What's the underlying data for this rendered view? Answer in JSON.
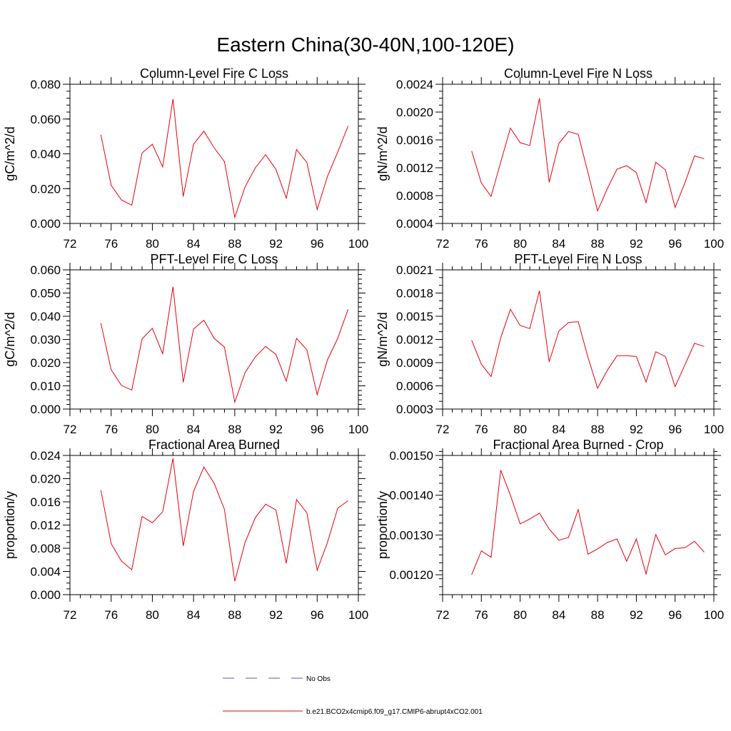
{
  "figure": {
    "title": "Eastern China(30-40N,100-120E)"
  },
  "legend": {
    "items": [
      {
        "label": "No Obs",
        "color": "#5555cc",
        "dashed": true
      },
      {
        "label": "b.e21.BCO2x4cmip6.f09_g17.CMIP6-abrupt4xCO2.001",
        "color": "#e8000b",
        "dashed": false
      }
    ]
  },
  "colors": {
    "series": "#e8000b",
    "axis": "#000000"
  },
  "chart_data": [
    {
      "type": "line",
      "title": "Column-Level Fire C Loss",
      "ylabel": "gC/m^2/d",
      "xlim": [
        72,
        100
      ],
      "xticks": [
        72,
        76,
        80,
        84,
        88,
        92,
        96,
        100
      ],
      "xtick_labels": [
        "72",
        "76",
        "80",
        "84",
        "88",
        "92",
        "96",
        "100"
      ],
      "ylim": [
        0.0,
        0.08
      ],
      "yticks": [
        0.0,
        0.02,
        0.04,
        0.06,
        0.08
      ],
      "ytick_labels": [
        "0.000",
        "0.020",
        "0.040",
        "0.060",
        "0.080"
      ],
      "yminor": 0.004,
      "x": [
        75,
        76,
        77,
        78,
        79,
        80,
        81,
        82,
        83,
        84,
        85,
        86,
        87,
        88,
        89,
        90,
        91,
        92,
        93,
        94,
        95,
        96,
        97,
        98,
        99
      ],
      "series": [
        {
          "name": "b.e21.BCO2x4cmip6.f09_g17.CMIP6-abrupt4xCO2.001",
          "values": [
            0.051,
            0.022,
            0.0135,
            0.0105,
            0.0405,
            0.0455,
            0.0325,
            0.0715,
            0.0155,
            0.0455,
            0.053,
            0.0435,
            0.0355,
            0.0035,
            0.021,
            0.032,
            0.0395,
            0.031,
            0.0145,
            0.0425,
            0.035,
            0.008,
            0.027,
            0.041,
            0.056
          ]
        }
      ]
    },
    {
      "type": "line",
      "title": "Column-Level Fire N Loss",
      "ylabel": "gN/m^2/d",
      "xlim": [
        72,
        100
      ],
      "xticks": [
        72,
        76,
        80,
        84,
        88,
        92,
        96,
        100
      ],
      "xtick_labels": [
        "72",
        "76",
        "80",
        "84",
        "88",
        "92",
        "96",
        "100"
      ],
      "ylim": [
        0.0004,
        0.0024
      ],
      "yticks": [
        0.0004,
        0.0008,
        0.0012,
        0.0016,
        0.002,
        0.0024
      ],
      "ytick_labels": [
        "0.0004",
        "0.0008",
        "0.0012",
        "0.0016",
        "0.0020",
        "0.0024"
      ],
      "yminor": 0.0001,
      "x": [
        75,
        76,
        77,
        78,
        79,
        80,
        81,
        82,
        83,
        84,
        85,
        86,
        87,
        88,
        89,
        90,
        91,
        92,
        93,
        94,
        95,
        96,
        97,
        98,
        99
      ],
      "series": [
        {
          "name": "b.e21.BCO2x4cmip6.f09_g17.CMIP6-abrupt4xCO2.001",
          "values": [
            0.00144,
            0.00098,
            0.00079,
            0.00128,
            0.00177,
            0.00156,
            0.00152,
            0.0022,
            0.00099,
            0.00155,
            0.00172,
            0.00168,
            0.00113,
            0.00058,
            0.0009,
            0.00118,
            0.00123,
            0.00113,
            0.0007,
            0.00128,
            0.00117,
            0.00063,
            0.00098,
            0.00137,
            0.00133
          ]
        }
      ]
    },
    {
      "type": "line",
      "title": "PFT-Level Fire C Loss",
      "ylabel": "gC/m^2/d",
      "xlim": [
        72,
        100
      ],
      "xticks": [
        72,
        76,
        80,
        84,
        88,
        92,
        96,
        100
      ],
      "xtick_labels": [
        "72",
        "76",
        "80",
        "84",
        "88",
        "92",
        "96",
        "100"
      ],
      "ylim": [
        0.0,
        0.06
      ],
      "yticks": [
        0.0,
        0.01,
        0.02,
        0.03,
        0.04,
        0.05,
        0.06
      ],
      "ytick_labels": [
        "0.000",
        "0.010",
        "0.020",
        "0.030",
        "0.040",
        "0.050",
        "0.060"
      ],
      "yminor": 0.002,
      "x": [
        75,
        76,
        77,
        78,
        79,
        80,
        81,
        82,
        83,
        84,
        85,
        86,
        87,
        88,
        89,
        90,
        91,
        92,
        93,
        94,
        95,
        96,
        97,
        98,
        99
      ],
      "series": [
        {
          "name": "b.e21.BCO2x4cmip6.f09_g17.CMIP6-abrupt4xCO2.001",
          "values": [
            0.037,
            0.017,
            0.0102,
            0.0082,
            0.0302,
            0.0348,
            0.0238,
            0.0527,
            0.0115,
            0.0345,
            0.0383,
            0.0305,
            0.0267,
            0.003,
            0.0157,
            0.0225,
            0.027,
            0.0235,
            0.012,
            0.0305,
            0.0255,
            0.0062,
            0.0212,
            0.0305,
            0.043
          ]
        }
      ]
    },
    {
      "type": "line",
      "title": "PFT-Level Fire N Loss",
      "ylabel": "gN/m^2/d",
      "xlim": [
        72,
        100
      ],
      "xticks": [
        72,
        76,
        80,
        84,
        88,
        92,
        96,
        100
      ],
      "xtick_labels": [
        "72",
        "76",
        "80",
        "84",
        "88",
        "92",
        "96",
        "100"
      ],
      "ylim": [
        0.0003,
        0.0021
      ],
      "yticks": [
        0.0003,
        0.0006,
        0.0009,
        0.0012,
        0.0015,
        0.0018,
        0.0021
      ],
      "ytick_labels": [
        "0.0003",
        "0.0006",
        "0.0009",
        "0.0012",
        "0.0015",
        "0.0018",
        "0.0021"
      ],
      "yminor": 0.0001,
      "x": [
        75,
        76,
        77,
        78,
        79,
        80,
        81,
        82,
        83,
        84,
        85,
        86,
        87,
        88,
        89,
        90,
        91,
        92,
        93,
        94,
        95,
        96,
        97,
        98,
        99
      ],
      "series": [
        {
          "name": "b.e21.BCO2x4cmip6.f09_g17.CMIP6-abrupt4xCO2.001",
          "values": [
            0.00119,
            0.00088,
            0.00072,
            0.00122,
            0.00159,
            0.00138,
            0.00134,
            0.00183,
            0.00091,
            0.00131,
            0.00142,
            0.00143,
            0.00097,
            0.00057,
            0.0008,
            0.00099,
            0.00099,
            0.00098,
            0.00065,
            0.00104,
            0.00098,
            0.00059,
            0.00087,
            0.00115,
            0.00111
          ]
        }
      ]
    },
    {
      "type": "line",
      "title": "Fractional Area Burned",
      "ylabel": "proportion/y",
      "xlim": [
        72,
        100
      ],
      "xticks": [
        72,
        76,
        80,
        84,
        88,
        92,
        96,
        100
      ],
      "xtick_labels": [
        "72",
        "76",
        "80",
        "84",
        "88",
        "92",
        "96",
        "100"
      ],
      "ylim": [
        0.0,
        0.024
      ],
      "yticks": [
        0.0,
        0.004,
        0.008,
        0.012,
        0.016,
        0.02,
        0.024
      ],
      "ytick_labels": [
        "0.000",
        "0.004",
        "0.008",
        "0.012",
        "0.016",
        "0.020",
        "0.024"
      ],
      "yminor": 0.001,
      "x": [
        75,
        76,
        77,
        78,
        79,
        80,
        81,
        82,
        83,
        84,
        85,
        86,
        87,
        88,
        89,
        90,
        91,
        92,
        93,
        94,
        95,
        96,
        97,
        98,
        99
      ],
      "series": [
        {
          "name": "b.e21.BCO2x4cmip6.f09_g17.CMIP6-abrupt4xCO2.001",
          "values": [
            0.018,
            0.0088,
            0.0058,
            0.0043,
            0.0135,
            0.0124,
            0.0143,
            0.0235,
            0.0084,
            0.0178,
            0.022,
            0.0192,
            0.0147,
            0.0023,
            0.009,
            0.0133,
            0.0156,
            0.0146,
            0.0054,
            0.0164,
            0.0141,
            0.0042,
            0.009,
            0.0149,
            0.0162
          ]
        }
      ]
    },
    {
      "type": "line",
      "title": "Fractional Area Burned - Crop",
      "ylabel": "proportion/y",
      "xlim": [
        72,
        100
      ],
      "xticks": [
        72,
        76,
        80,
        84,
        88,
        92,
        96,
        100
      ],
      "xtick_labels": [
        "72",
        "76",
        "80",
        "84",
        "88",
        "92",
        "96",
        "100"
      ],
      "ylim": [
        0.00115,
        0.0015
      ],
      "yticks": [
        0.0012,
        0.0013,
        0.0014,
        0.0015
      ],
      "ytick_labels": [
        "0.00120",
        "0.00130",
        "0.00140",
        "0.00150"
      ],
      "yminor": 2e-05,
      "x": [
        75,
        76,
        77,
        78,
        79,
        80,
        81,
        82,
        83,
        84,
        85,
        86,
        87,
        88,
        89,
        90,
        91,
        92,
        93,
        94,
        95,
        96,
        97,
        98,
        99
      ],
      "series": [
        {
          "name": "b.e21.BCO2x4cmip6.f09_g17.CMIP6-abrupt4xCO2.001",
          "values": [
            0.0012,
            0.00126,
            0.001244,
            0.001463,
            0.0014,
            0.001328,
            0.00134,
            0.001355,
            0.001315,
            0.001287,
            0.001294,
            0.001364,
            0.001252,
            0.001265,
            0.001281,
            0.00129,
            0.001234,
            0.00129,
            0.001202,
            0.001301,
            0.00125,
            0.001266,
            0.001268,
            0.001284,
            0.001257
          ]
        }
      ]
    }
  ]
}
